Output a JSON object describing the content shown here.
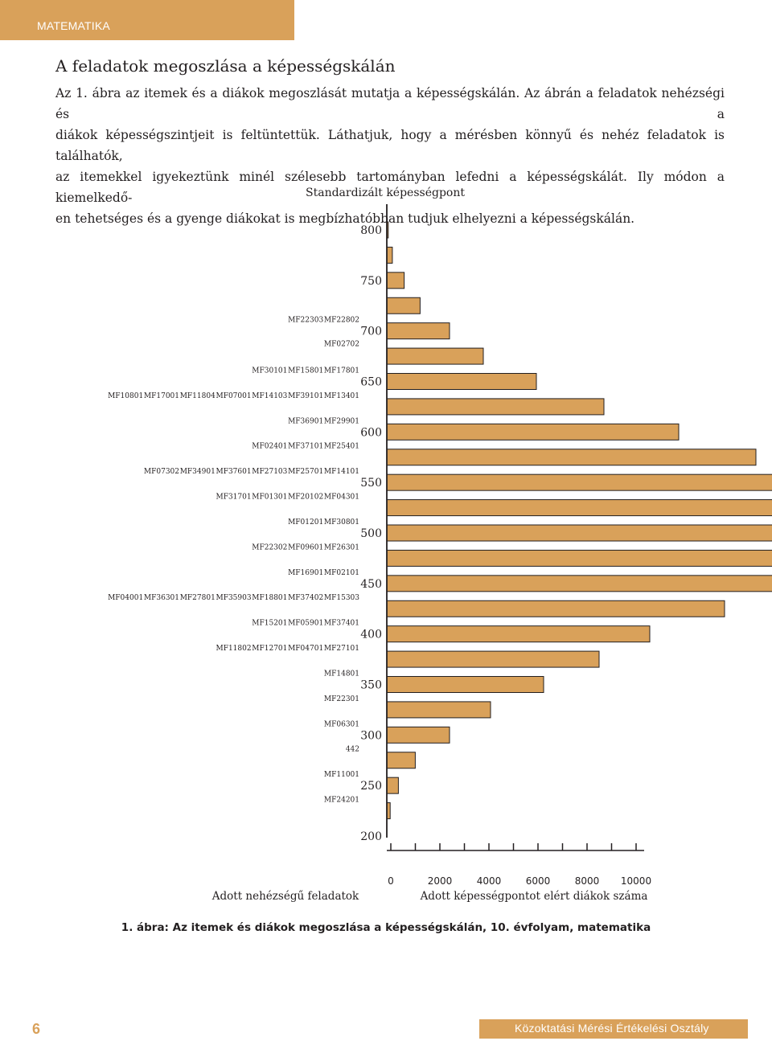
{
  "header": {
    "section": "MATEMATIKA"
  },
  "section_title": "A feladatok megoszlása a képességskálán",
  "paragraph_lines": [
    "Az 1. ábra az itemek és a diákok megoszlását mutatja a képességskálán. Az ábrán a feladatok nehézségi és a",
    "diákok képességszintjeit is feltüntettük. Láthatjuk, hogy a mérésben könnyű és nehéz feladatok is találhatók,",
    "az itemekkel igyekeztünk minél szélesebb tartományban lefedni a képességskálát. Ily módon a kiemelkedő-",
    "en tehetséges és a gyenge diákokat is megbízhatóbban tudjuk elhelyezni a képességskálán."
  ],
  "chart_data": {
    "type": "bar",
    "orientation": "horizontal",
    "title": "Standardizált képességpont",
    "left_axis_label": "Adott nehézségű feladatok",
    "right_axis_label": "Adott képességpontot elért diákok száma",
    "y_ticks": [
      800,
      750,
      700,
      650,
      600,
      550,
      500,
      450,
      400,
      350,
      300,
      250,
      200
    ],
    "x_ticks": [
      0,
      2000,
      4000,
      6000,
      8000,
      10000
    ],
    "xlim": [
      0,
      10000
    ],
    "bar_color": "#d9a15a",
    "student_counts": [
      {
        "score": 800,
        "count": 60
      },
      {
        "score": 775,
        "count": 230
      },
      {
        "score": 750,
        "count": 720
      },
      {
        "score": 725,
        "count": 1380
      },
      {
        "score": 700,
        "count": 2600
      },
      {
        "score": 675,
        "count": 4000
      },
      {
        "score": 650,
        "count": 6200
      },
      {
        "score": 625,
        "count": 9000
      },
      {
        "score": 600,
        "count": 12100
      },
      {
        "score": 575,
        "count": 15300
      },
      {
        "score": 550,
        "count": 18000
      },
      {
        "score": 525,
        "count": 19400
      },
      {
        "score": 500,
        "count": 19300
      },
      {
        "score": 475,
        "count": 18500
      },
      {
        "score": 450,
        "count": 16900
      },
      {
        "score": 425,
        "count": 14000
      },
      {
        "score": 400,
        "count": 10900
      },
      {
        "score": 375,
        "count": 8800
      },
      {
        "score": 350,
        "count": 6500
      },
      {
        "score": 325,
        "count": 4300
      },
      {
        "score": 300,
        "count": 2600
      },
      {
        "score": 275,
        "count": 1180
      },
      {
        "score": 250,
        "count": 480
      },
      {
        "score": 225,
        "count": 140
      }
    ],
    "item_rows": [
      {
        "score": 712,
        "items": [
          "MF22303",
          "MF22802"
        ]
      },
      {
        "score": 688,
        "items": [
          "MF02702"
        ]
      },
      {
        "score": 662,
        "items": [
          "MF30101",
          "MF15801",
          "MF17801"
        ]
      },
      {
        "score": 637,
        "items": [
          "MF10801",
          "MF17001",
          "MF11804",
          "MF07001",
          "MF14103",
          "MF39101",
          "MF13401"
        ]
      },
      {
        "score": 612,
        "items": [
          "MF36901",
          "MF29901"
        ]
      },
      {
        "score": 587,
        "items": [
          "MF02401",
          "MF37101",
          "MF25401"
        ]
      },
      {
        "score": 562,
        "items": [
          "MF07302",
          "MF34901",
          "MF37601",
          "MF27103",
          "MF25701",
          "MF14101"
        ]
      },
      {
        "score": 537,
        "items": [
          "MF31701",
          "MF01301",
          "MF20102",
          "MF04301"
        ]
      },
      {
        "score": 512,
        "items": [
          "MF01201",
          "MF30801"
        ]
      },
      {
        "score": 487,
        "items": [
          "MF22302",
          "MF09601",
          "MF26301"
        ]
      },
      {
        "score": 462,
        "items": [
          "MF16901",
          "MF02101"
        ]
      },
      {
        "score": 437,
        "items": [
          "MF04001",
          "MF36301",
          "MF27801",
          "MF35903",
          "MF18801",
          "MF37402",
          "MF15303"
        ]
      },
      {
        "score": 412,
        "items": [
          "MF15201",
          "MF05901",
          "MF37401"
        ]
      },
      {
        "score": 387,
        "items": [
          "MF11802",
          "MF12701",
          "MF04701",
          "MF27101"
        ]
      },
      {
        "score": 362,
        "items": [
          "MF14801"
        ]
      },
      {
        "score": 337,
        "items": [
          "MF22301"
        ]
      },
      {
        "score": 312,
        "items": [
          "MF06301"
        ]
      },
      {
        "score": 287,
        "items": [
          "442"
        ]
      },
      {
        "score": 262,
        "items": [
          "MF11001"
        ]
      },
      {
        "score": 237,
        "items": [
          "MF24201"
        ]
      }
    ]
  },
  "figure_caption": "1. ábra: Az itemek és diákok megoszlása a képességskálán, 10. évfolyam, matematika",
  "footer": {
    "page_number": "6",
    "organization": "Közoktatási Mérési Értékelési Osztály"
  }
}
